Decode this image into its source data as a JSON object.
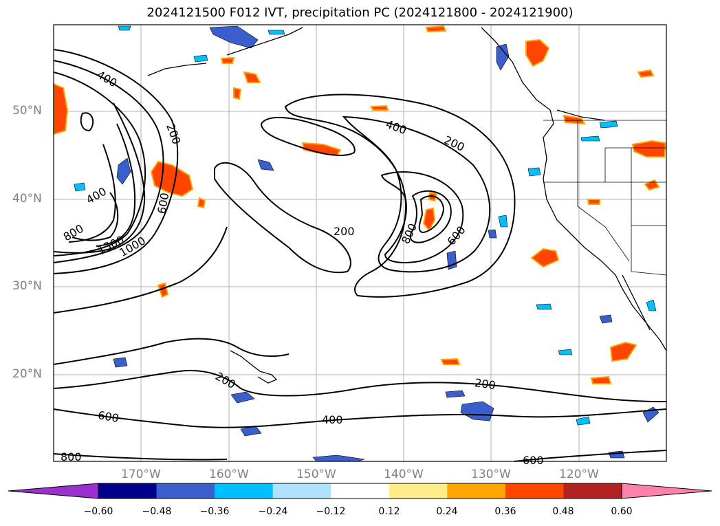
{
  "title": "2024121500 F012 IVT, precipitation PC (2024121800 - 2024121900)",
  "map": {
    "lat_labels": [
      "50°N",
      "40°N",
      "30°N",
      "20°N"
    ],
    "lon_labels": [
      "170°W",
      "160°W",
      "150°W",
      "140°W",
      "130°W",
      "120°W"
    ],
    "contour_labels": [
      "400",
      "200",
      "400",
      "800",
      "1300",
      "1000",
      "600",
      "400",
      "200",
      "200",
      "800",
      "600",
      "200",
      "200",
      "600",
      "400",
      "800",
      "600"
    ]
  },
  "colorbar": {
    "ticks": [
      "−0.60",
      "−0.48",
      "−0.36",
      "−0.24",
      "−0.12",
      "0.12",
      "0.24",
      "0.36",
      "0.48",
      "0.60"
    ],
    "colors": [
      "#9932cc",
      "#00008b",
      "#3a5fcd",
      "#00bfff",
      "#b0e2ff",
      "#ffffff",
      "#ffec8b",
      "#ffa500",
      "#ff4500",
      "#b22222",
      "#ff82ab"
    ]
  }
}
